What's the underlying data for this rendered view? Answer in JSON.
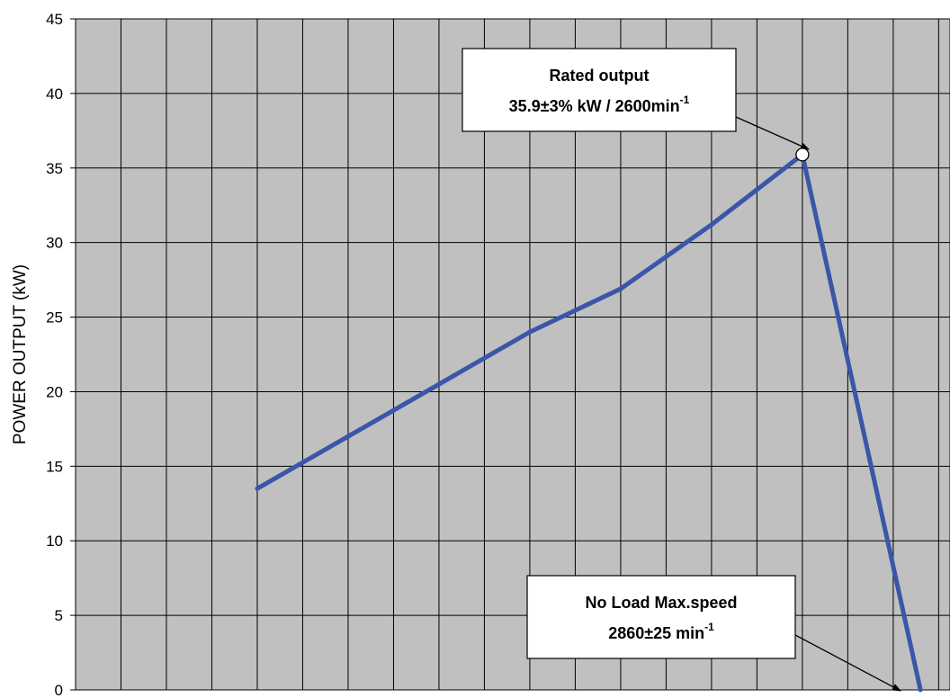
{
  "chart_data": {
    "type": "line",
    "title": "",
    "xlabel": "",
    "ylabel": "POWER OUTPUT (kW)",
    "ylim": [
      0,
      45
    ],
    "yticks": [
      0,
      5,
      10,
      15,
      20,
      25,
      30,
      35,
      40,
      45
    ],
    "xlim": [
      1000,
      2925
    ],
    "x_grid_step": 100,
    "grid": true,
    "plot_background": "#c0c0c0",
    "series": [
      {
        "color": "#3a56a8",
        "points": [
          {
            "x": 1400,
            "y": 13.5
          },
          {
            "x": 1600,
            "y": 17.0
          },
          {
            "x": 1800,
            "y": 20.5
          },
          {
            "x": 2000,
            "y": 24.0
          },
          {
            "x": 2200,
            "y": 26.9
          },
          {
            "x": 2400,
            "y": 31.2
          },
          {
            "x": 2600,
            "y": 35.9
          },
          {
            "x": 2860,
            "y": 0
          }
        ]
      }
    ],
    "annotations": [
      {
        "name": "rated-output",
        "line1": "Rated output",
        "line2_main": "35.9±3% kW / 2600min",
        "line2_sup": "-1",
        "target": {
          "x": 2600,
          "y": 35.9
        },
        "marker": "open-circle"
      },
      {
        "name": "no-load-max-speed",
        "line1": "No Load Max.speed",
        "line2_main": "2860±25 min",
        "line2_sup": "-1",
        "target": {
          "x": 2860,
          "y": 0
        }
      }
    ]
  }
}
